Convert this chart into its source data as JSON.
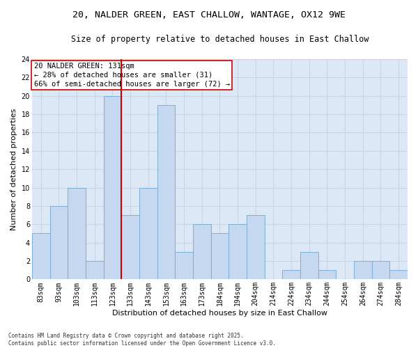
{
  "title_line1": "20, NALDER GREEN, EAST CHALLOW, WANTAGE, OX12 9WE",
  "title_line2": "Size of property relative to detached houses in East Challow",
  "xlabel": "Distribution of detached houses by size in East Challow",
  "ylabel": "Number of detached properties",
  "categories": [
    "83sqm",
    "93sqm",
    "103sqm",
    "113sqm",
    "123sqm",
    "133sqm",
    "143sqm",
    "153sqm",
    "163sqm",
    "173sqm",
    "184sqm",
    "194sqm",
    "204sqm",
    "214sqm",
    "224sqm",
    "234sqm",
    "244sqm",
    "254sqm",
    "264sqm",
    "274sqm",
    "284sqm"
  ],
  "values": [
    5,
    8,
    10,
    2,
    20,
    7,
    10,
    19,
    3,
    6,
    5,
    6,
    7,
    0,
    1,
    3,
    1,
    0,
    2,
    2,
    1
  ],
  "bar_color": "#c5d8ef",
  "bar_edge_color": "#7badd4",
  "vline_color": "#cc0000",
  "vline_x_index": 5.0,
  "annotation_line1": "20 NALDER GREEN: 131sqm",
  "annotation_line2": "← 28% of detached houses are smaller (31)",
  "annotation_line3": "66% of semi-detached houses are larger (72) →",
  "annotation_box_color": "#ffffff",
  "annotation_box_edge": "#cc0000",
  "ylim": [
    0,
    24
  ],
  "yticks": [
    0,
    2,
    4,
    6,
    8,
    10,
    12,
    14,
    16,
    18,
    20,
    22,
    24
  ],
  "grid_color": "#c8d4e8",
  "bg_color": "#dce8f5",
  "fig_bg_color": "#ffffff",
  "footnote": "Contains HM Land Registry data © Crown copyright and database right 2025.\nContains public sector information licensed under the Open Government Licence v3.0.",
  "title_fontsize": 9.5,
  "subtitle_fontsize": 8.5,
  "axis_label_fontsize": 8,
  "tick_fontsize": 7,
  "annotation_fontsize": 7.5,
  "footnote_fontsize": 5.5
}
